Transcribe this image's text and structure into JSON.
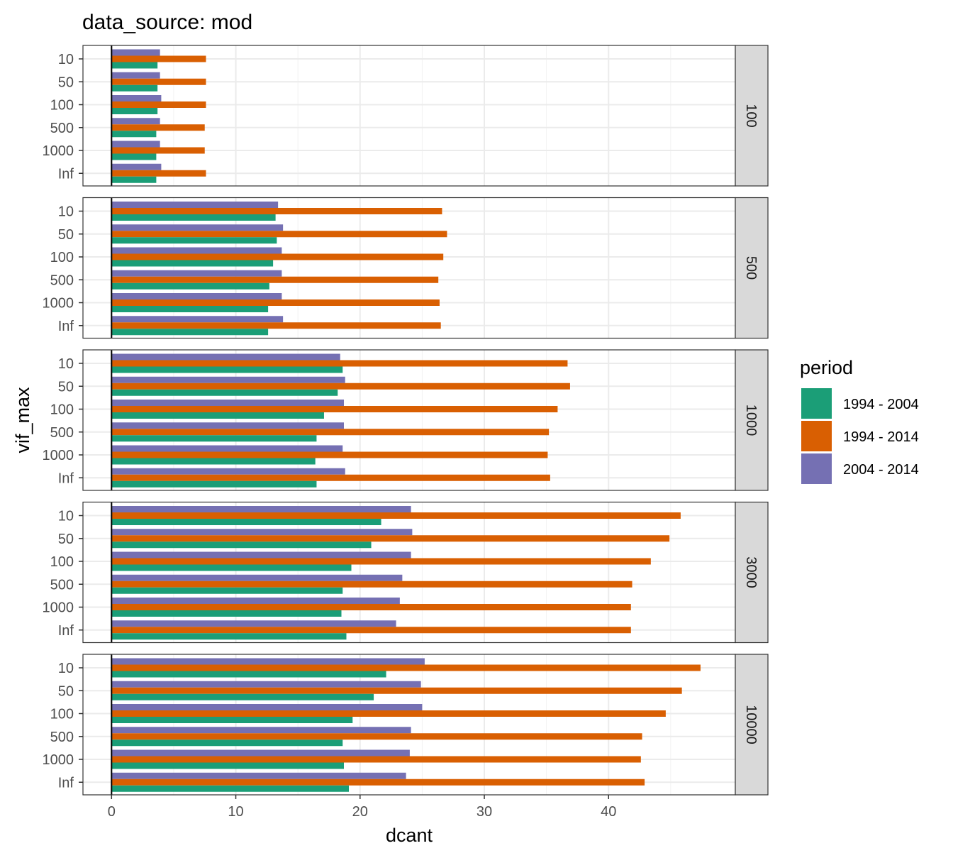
{
  "chart_data": {
    "type": "bar",
    "orientation": "horizontal",
    "title": "data_source: mod",
    "xlabel": "dcant",
    "ylabel": "vif_max",
    "xlim": [
      -2.3,
      50.2
    ],
    "x_ticks": [
      0,
      10,
      20,
      30,
      40
    ],
    "grid": true,
    "facet_position": "right",
    "categories": [
      "10",
      "50",
      "100",
      "500",
      "1000",
      "Inf"
    ],
    "legend": {
      "title": "period",
      "position": "right",
      "entries": [
        {
          "label": "1994 - 2004",
          "color": "#1B9E77"
        },
        {
          "label": "1994 - 2014",
          "color": "#D95F02"
        },
        {
          "label": "2004 - 2014",
          "color": "#7570B3"
        }
      ]
    },
    "facets": [
      {
        "label": "100",
        "series": [
          {
            "name": "1994 - 2004",
            "values": [
              3.7,
              3.7,
              3.7,
              3.6,
              3.6,
              3.6
            ]
          },
          {
            "name": "1994 - 2014",
            "values": [
              7.6,
              7.6,
              7.6,
              7.5,
              7.5,
              7.6
            ]
          },
          {
            "name": "2004 - 2014",
            "values": [
              3.9,
              3.9,
              4.0,
              3.9,
              3.9,
              4.0
            ]
          }
        ]
      },
      {
        "label": "500",
        "series": [
          {
            "name": "1994 - 2004",
            "values": [
              13.2,
              13.3,
              13.0,
              12.7,
              12.6,
              12.6
            ]
          },
          {
            "name": "1994 - 2014",
            "values": [
              26.6,
              27.0,
              26.7,
              26.3,
              26.4,
              26.5
            ]
          },
          {
            "name": "2004 - 2014",
            "values": [
              13.4,
              13.8,
              13.7,
              13.7,
              13.7,
              13.8
            ]
          }
        ]
      },
      {
        "label": "1000",
        "series": [
          {
            "name": "1994 - 2004",
            "values": [
              18.6,
              18.2,
              17.1,
              16.5,
              16.4,
              16.5
            ]
          },
          {
            "name": "1994 - 2014",
            "values": [
              36.7,
              36.9,
              35.9,
              35.2,
              35.1,
              35.3
            ]
          },
          {
            "name": "2004 - 2014",
            "values": [
              18.4,
              18.8,
              18.7,
              18.7,
              18.6,
              18.8
            ]
          }
        ]
      },
      {
        "label": "3000",
        "series": [
          {
            "name": "1994 - 2004",
            "values": [
              21.7,
              20.9,
              19.3,
              18.6,
              18.5,
              18.9
            ]
          },
          {
            "name": "1994 - 2014",
            "values": [
              45.8,
              44.9,
              43.4,
              41.9,
              41.8,
              41.8
            ]
          },
          {
            "name": "2004 - 2014",
            "values": [
              24.1,
              24.2,
              24.1,
              23.4,
              23.2,
              22.9
            ]
          }
        ]
      },
      {
        "label": "10000",
        "series": [
          {
            "name": "1994 - 2004",
            "values": [
              22.1,
              21.1,
              19.4,
              18.6,
              18.7,
              19.1
            ]
          },
          {
            "name": "1994 - 2014",
            "values": [
              47.4,
              45.9,
              44.6,
              42.7,
              42.6,
              42.9
            ]
          },
          {
            "name": "2004 - 2014",
            "values": [
              25.2,
              24.9,
              25.0,
              24.1,
              24.0,
              23.7
            ]
          }
        ]
      }
    ]
  }
}
